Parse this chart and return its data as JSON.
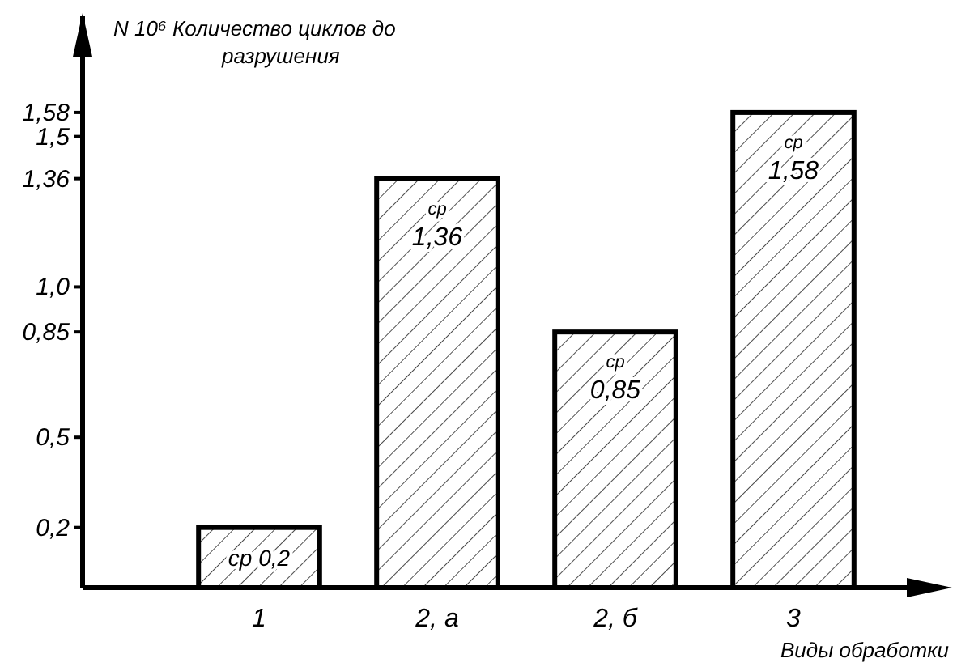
{
  "chart_data": {
    "type": "bar",
    "ylabel": "N 10⁶ Количество циклов до разрушения",
    "xlabel": "Виды обработки",
    "categories": [
      "1",
      "2, a",
      "2, б",
      "3"
    ],
    "values": [
      0.2,
      1.36,
      0.85,
      1.58
    ],
    "value_labels": [
      "ср 0,2",
      "ср 1,36",
      "ср 0,85",
      "ср 1,58"
    ],
    "color": "#000000",
    "ylim": [
      0,
      1.9
    ],
    "yticks": [
      {
        "value": 0.2,
        "label": "0,2"
      },
      {
        "value": 0.5,
        "label": "0,5"
      },
      {
        "value": 0.85,
        "label": "0,85"
      },
      {
        "value": 1.0,
        "label": "1,0"
      },
      {
        "value": 1.36,
        "label": "1,36"
      },
      {
        "value": 1.5,
        "label": "1,5"
      },
      {
        "value": 1.58,
        "label": "1,58"
      }
    ],
    "grid": false
  }
}
